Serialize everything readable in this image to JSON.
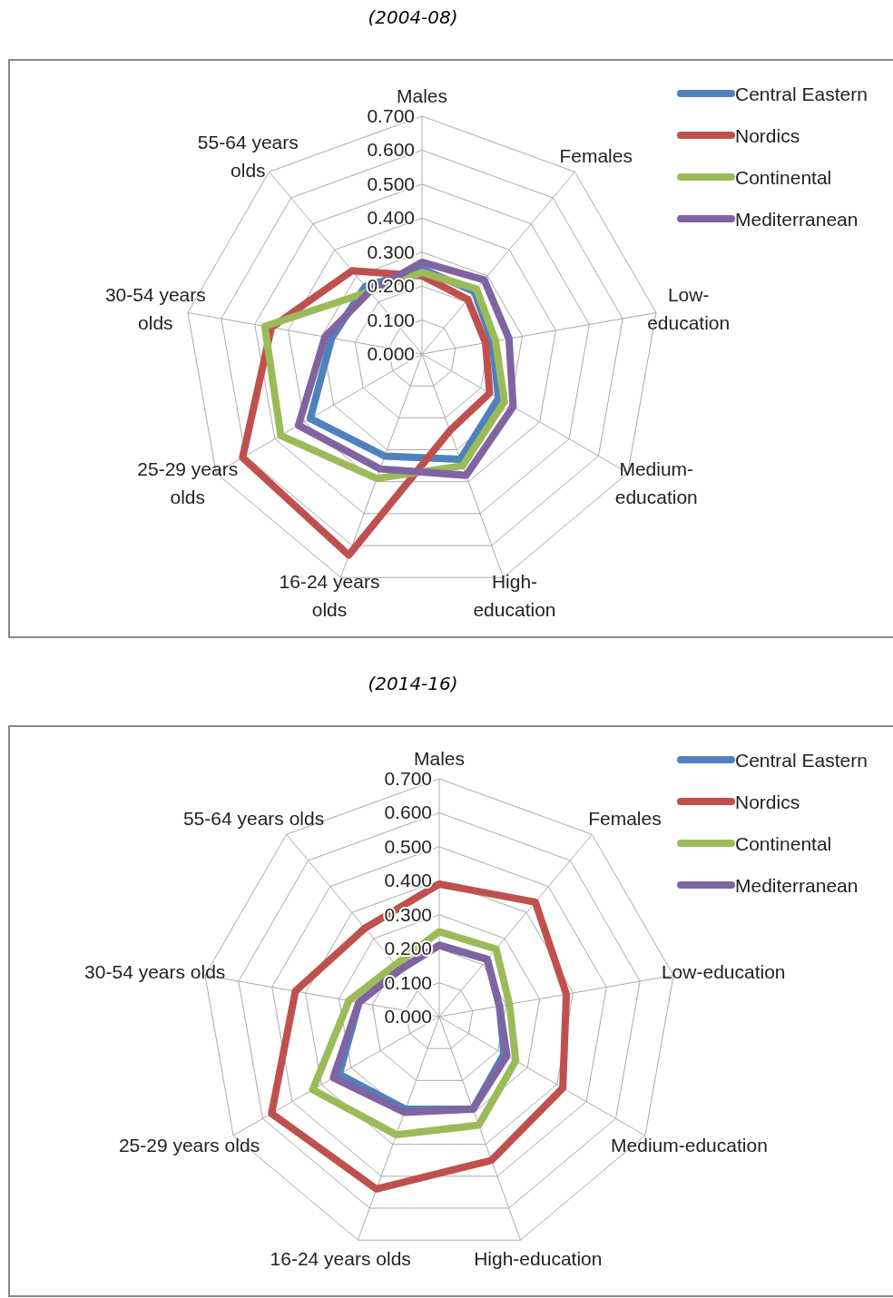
{
  "chart_data": [
    {
      "type": "radar",
      "title": "(2004-08)",
      "categories": [
        "Males",
        "Females",
        "Low-education",
        "Medium-education",
        "High-education",
        "16-24 years olds",
        "25-29 years olds",
        "30-54 years olds",
        "55-64 years olds"
      ],
      "ylim": [
        0,
        0.7
      ],
      "yticks": [
        {
          "value": 0,
          "label": "0.000"
        },
        {
          "value": 0.1,
          "label": "0.100"
        },
        {
          "value": 0.2,
          "label": "0.200"
        },
        {
          "value": 0.3,
          "label": "0.300"
        },
        {
          "value": 0.4,
          "label": "0.400"
        },
        {
          "value": 0.5,
          "label": "0.500"
        },
        {
          "value": 0.6,
          "label": "0.600"
        },
        {
          "value": 0.7,
          "label": "0.700"
        }
      ],
      "grid": true,
      "legend": "top right",
      "series": [
        {
          "name": "Central Eastern",
          "color": "#4f81bd",
          "values": [
            0.25,
            0.24,
            0.21,
            0.26,
            0.33,
            0.32,
            0.38,
            0.27,
            0.26
          ]
        },
        {
          "name": "Nordics",
          "color": "#c0504d",
          "values": [
            0.23,
            0.21,
            0.19,
            0.23,
            0.24,
            0.63,
            0.61,
            0.45,
            0.32
          ]
        },
        {
          "name": "Continental",
          "color": "#9bbb59",
          "values": [
            0.24,
            0.25,
            0.22,
            0.28,
            0.35,
            0.39,
            0.48,
            0.47,
            0.24
          ]
        },
        {
          "name": "Mediterranean",
          "color": "#8064a2",
          "values": [
            0.27,
            0.285,
            0.26,
            0.31,
            0.38,
            0.36,
            0.42,
            0.29,
            0.24
          ]
        }
      ]
    },
    {
      "type": "radar",
      "title": "(2014-16)",
      "categories": [
        "Males",
        "Females",
        "Low-education",
        "Medium-education",
        "High-education",
        "16-24 years olds",
        "25-29 years olds",
        "30-54 years olds",
        "55-64 years olds"
      ],
      "ylim": [
        0,
        0.7
      ],
      "yticks": [
        {
          "value": 0,
          "label": "0.000"
        },
        {
          "value": 0.1,
          "label": "0.100"
        },
        {
          "value": 0.2,
          "label": "0.200"
        },
        {
          "value": 0.3,
          "label": "0.300"
        },
        {
          "value": 0.4,
          "label": "0.400"
        },
        {
          "value": 0.5,
          "label": "0.500"
        },
        {
          "value": 0.6,
          "label": "0.600"
        },
        {
          "value": 0.7,
          "label": "0.700"
        }
      ],
      "grid": true,
      "legend": "top right",
      "series": [
        {
          "name": "Central Eastern",
          "color": "#4f81bd",
          "values": [
            0.21,
            0.22,
            0.18,
            0.22,
            0.29,
            0.29,
            0.34,
            0.24,
            0.18
          ]
        },
        {
          "name": "Nordics",
          "color": "#c0504d",
          "values": [
            0.39,
            0.44,
            0.38,
            0.42,
            0.45,
            0.54,
            0.57,
            0.43,
            0.34
          ]
        },
        {
          "name": "Continental",
          "color": "#9bbb59",
          "values": [
            0.25,
            0.26,
            0.21,
            0.26,
            0.34,
            0.37,
            0.43,
            0.27,
            0.2
          ]
        },
        {
          "name": "Mediterranean",
          "color": "#8064a2",
          "values": [
            0.21,
            0.22,
            0.18,
            0.23,
            0.29,
            0.3,
            0.36,
            0.24,
            0.18
          ]
        }
      ]
    }
  ]
}
